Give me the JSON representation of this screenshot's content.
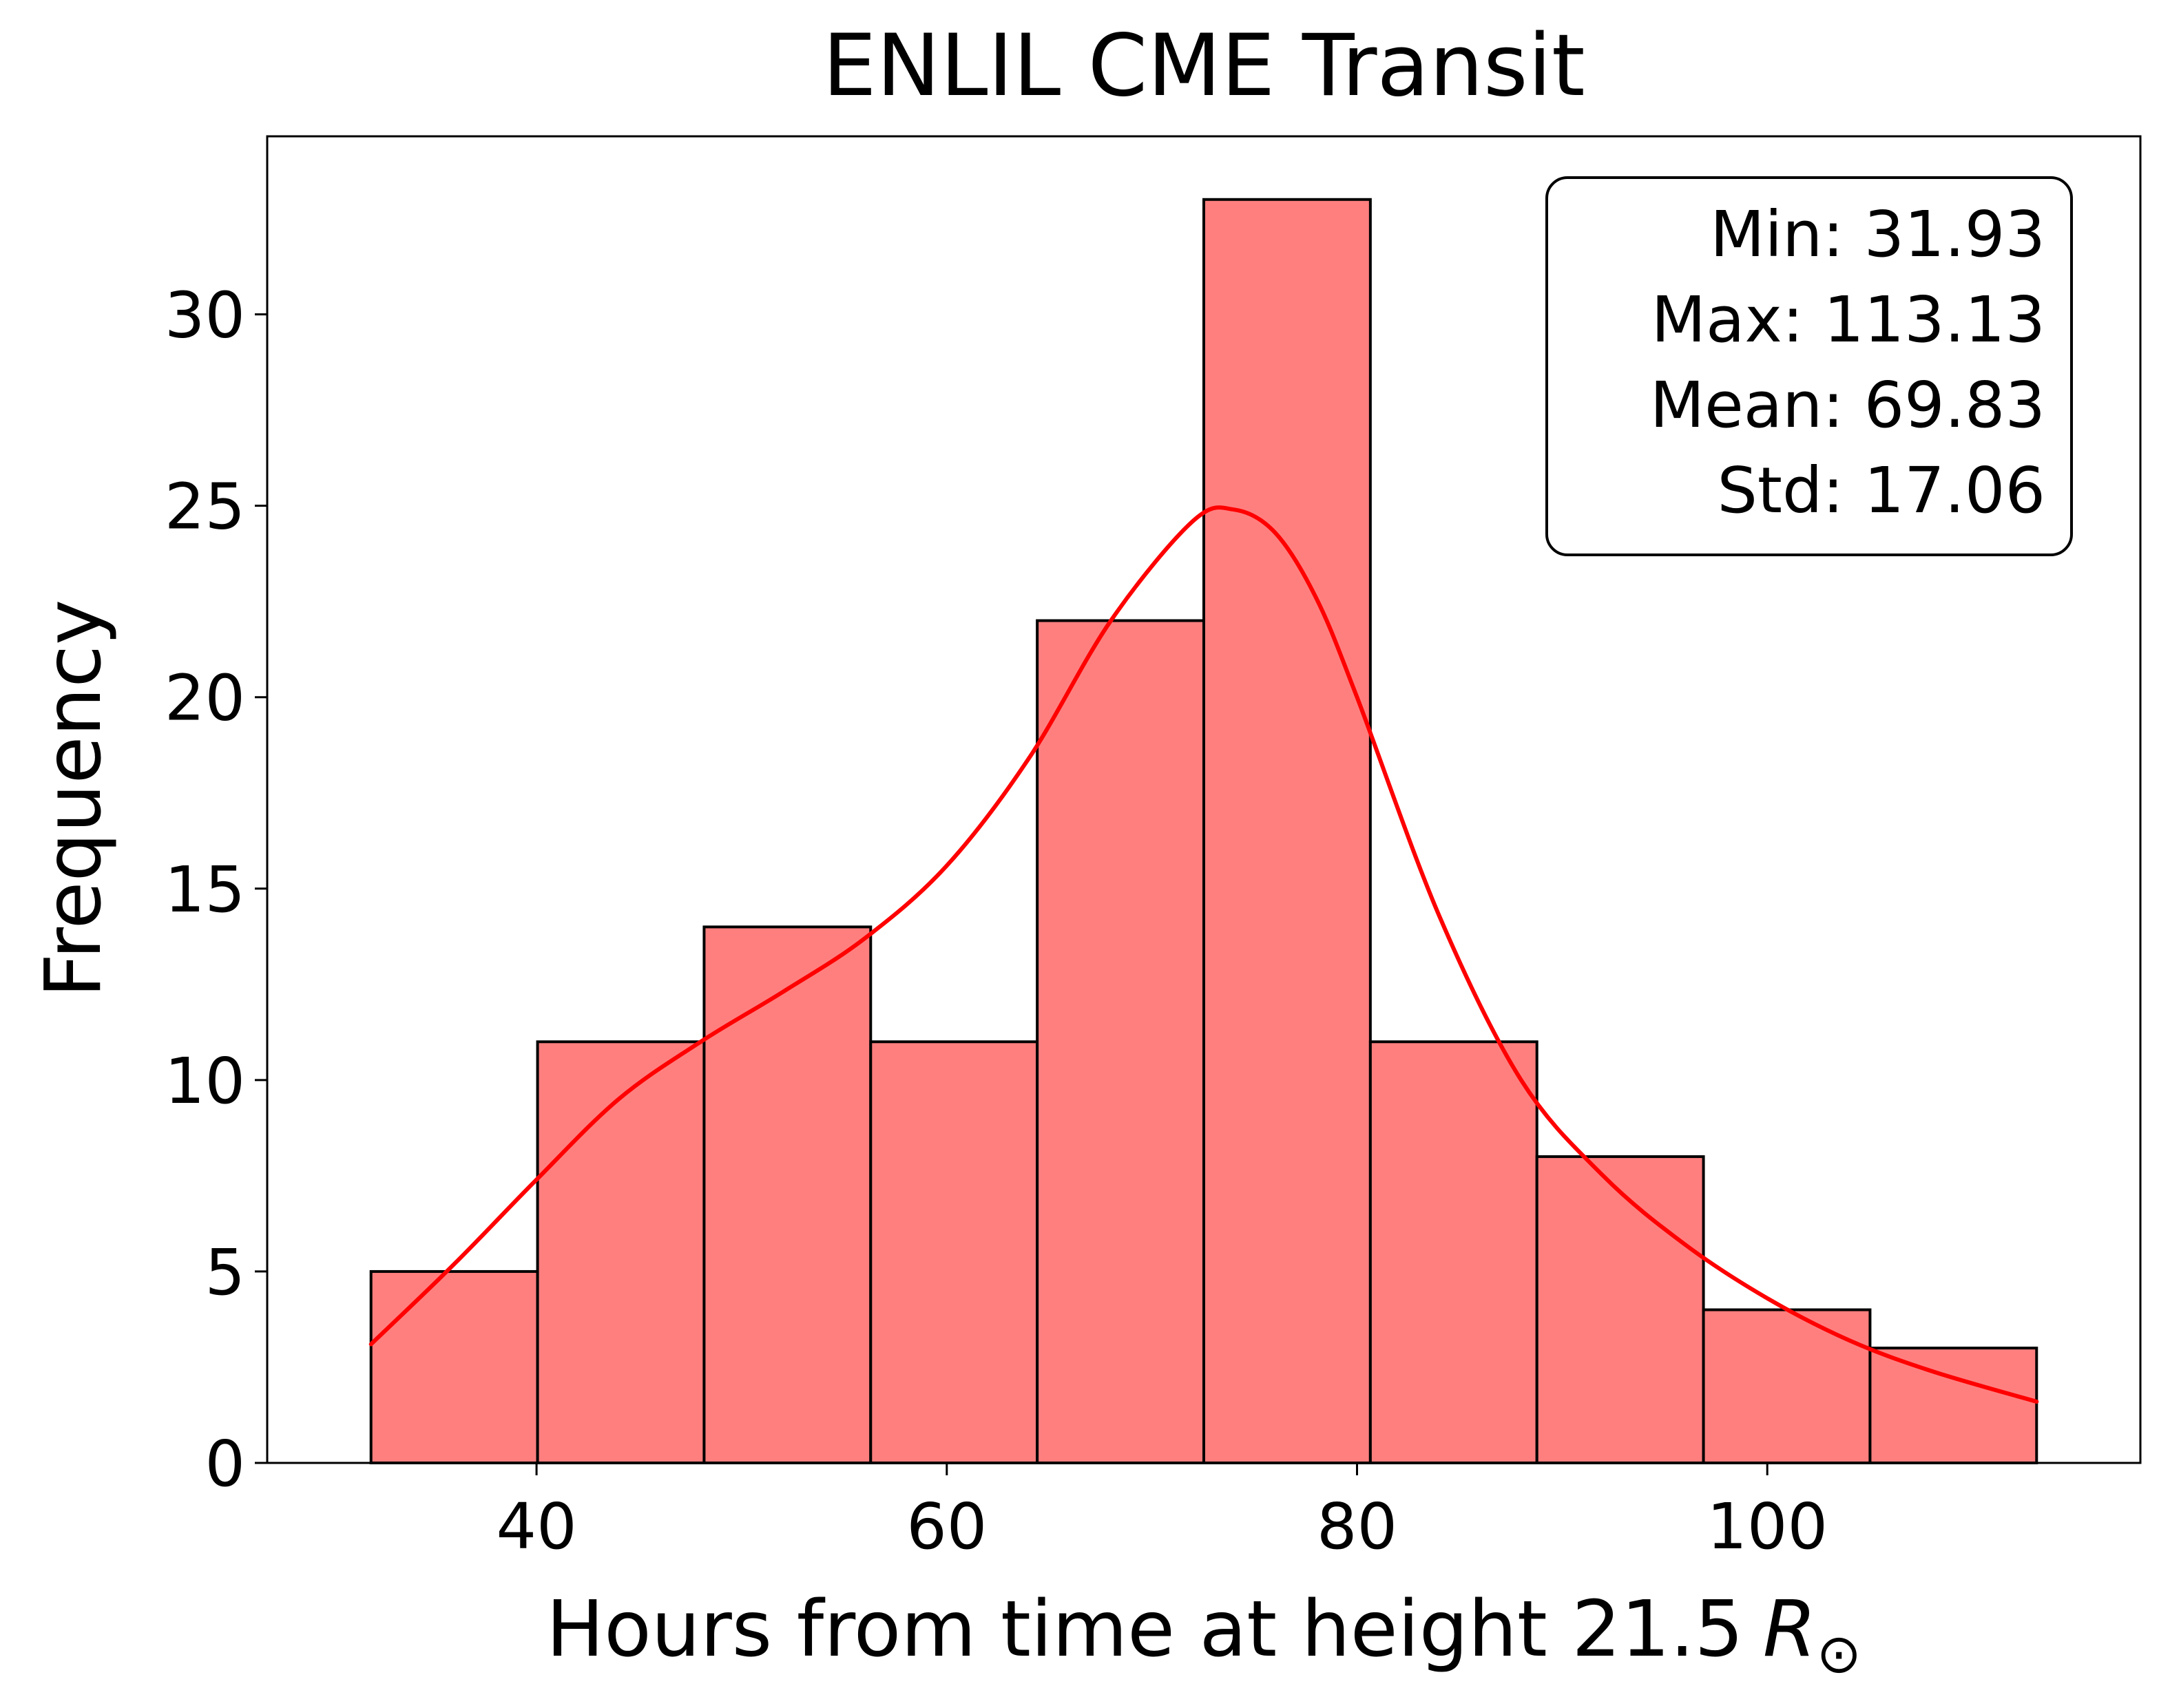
{
  "chart_data": {
    "type": "bar",
    "title": "ENLIL CME Transit",
    "xlabel": "Hours from time at height 21.5",
    "xlabel_symbol": "R",
    "xlabel_subscript": "⊙",
    "ylabel": "Frequency",
    "xlim": [
      26.87,
      118.19
    ],
    "ylim": [
      0,
      34.65
    ],
    "xticks": [
      40,
      60,
      80,
      100
    ],
    "xtick_labels": [
      "40",
      "60",
      "80",
      "100"
    ],
    "yticks": [
      0,
      5,
      10,
      15,
      20,
      25,
      30
    ],
    "ytick_labels": [
      "0",
      "5",
      "10",
      "15",
      "20",
      "25",
      "30"
    ],
    "bins": [
      {
        "start": 31.93,
        "end": 40.05,
        "count": 5
      },
      {
        "start": 40.05,
        "end": 48.17,
        "count": 11
      },
      {
        "start": 48.17,
        "end": 56.29,
        "count": 14
      },
      {
        "start": 56.29,
        "end": 64.41,
        "count": 11
      },
      {
        "start": 64.41,
        "end": 72.53,
        "count": 22
      },
      {
        "start": 72.53,
        "end": 80.65,
        "count": 33
      },
      {
        "start": 80.65,
        "end": 88.77,
        "count": 11
      },
      {
        "start": 88.77,
        "end": 96.89,
        "count": 8
      },
      {
        "start": 96.89,
        "end": 105.01,
        "count": 4
      },
      {
        "start": 105.01,
        "end": 113.13,
        "count": 3
      }
    ],
    "kde": {
      "name": "KDE",
      "x": [
        31.93,
        36,
        40,
        44,
        48,
        52,
        56,
        60,
        64,
        68,
        72,
        74,
        76,
        78,
        80,
        84,
        88,
        92,
        96,
        100,
        104,
        108,
        113.13
      ],
      "y": [
        3.1,
        5.2,
        7.4,
        9.5,
        11.0,
        12.3,
        13.7,
        15.6,
        18.4,
        22.0,
        24.6,
        24.9,
        24.3,
        22.6,
        20.0,
        14.3,
        10.0,
        7.5,
        5.7,
        4.3,
        3.2,
        2.4,
        1.6
      ]
    },
    "stats": {
      "lines": [
        "Min: 31.93",
        "Max: 113.13",
        "Mean: 69.83",
        "Std: 17.06"
      ]
    },
    "colors": {
      "bar_fill": "#ff7f7f",
      "bar_edge": "#000000",
      "kde_line": "#ff0000"
    },
    "grid": false,
    "stats_box_placement": "top-right"
  }
}
